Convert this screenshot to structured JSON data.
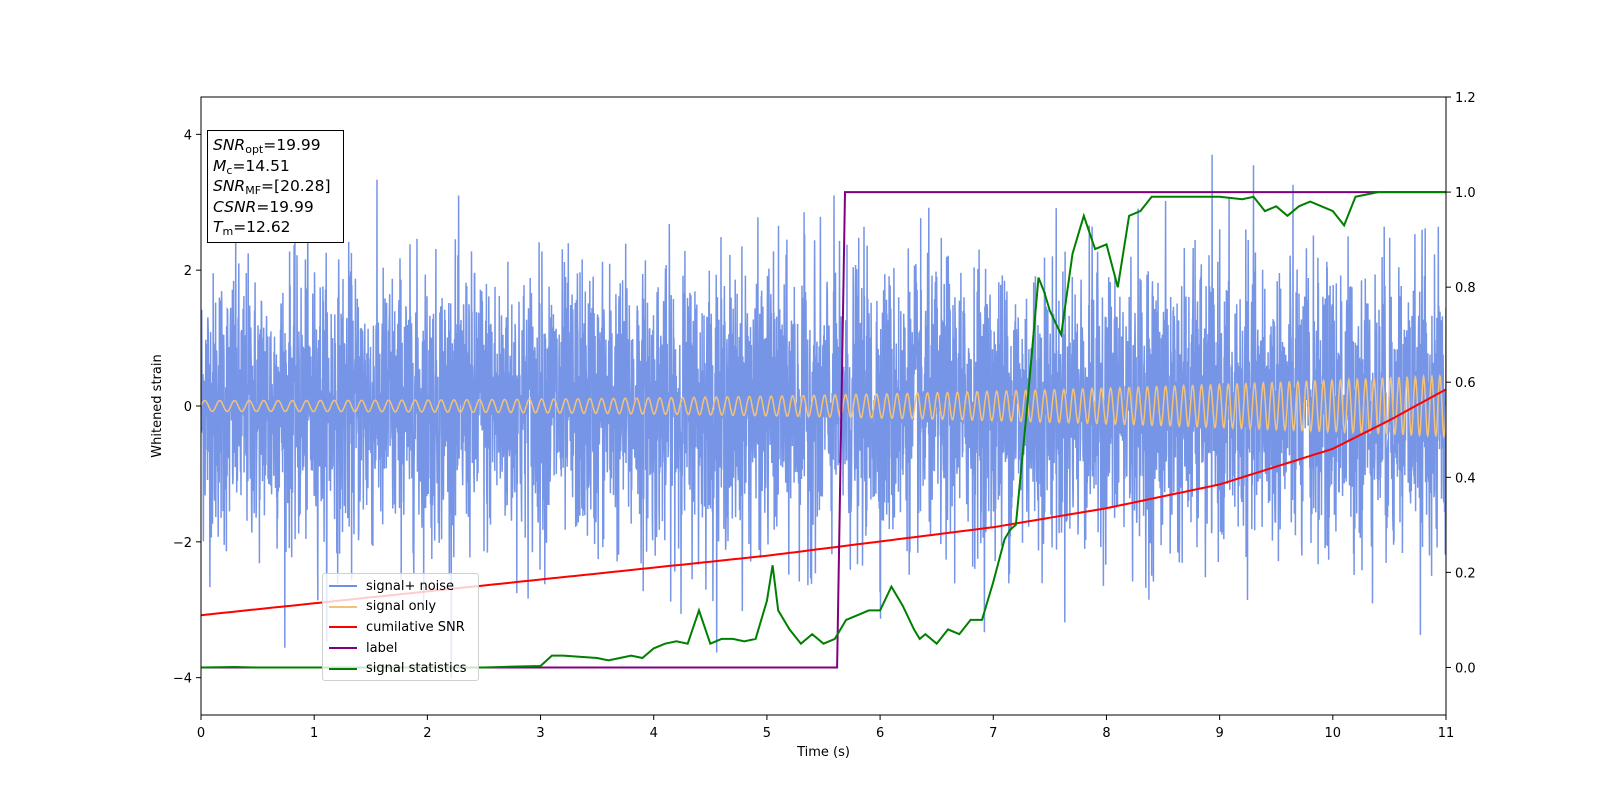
{
  "chart_data": {
    "type": "line",
    "xlabel": "Time (s)",
    "ylabel": "Whitened strain",
    "xlim": [
      0,
      11
    ],
    "ylim": [
      -4.55,
      4.55
    ],
    "y2lim": [
      -0.1,
      1.2
    ],
    "x_ticks": [
      "0",
      "1",
      "2",
      "3",
      "4",
      "5",
      "6",
      "7",
      "8",
      "9",
      "10",
      "11"
    ],
    "y_ticks": [
      "−4",
      "−2",
      "0",
      "2",
      "4"
    ],
    "y2_ticks": [
      "0.0",
      "0.2",
      "0.4",
      "0.6",
      "0.8",
      "1.0",
      "1.2"
    ],
    "grid": false,
    "legend_position": "lower-left",
    "annotation": {
      "lines": [
        {
          "sym": "SNR",
          "sub": "opt",
          "value": "=19.99"
        },
        {
          "sym": "M",
          "sub": "c",
          "value": "=14.51"
        },
        {
          "sym": "SNR",
          "sub": "MF",
          "value": "=[20.28]"
        },
        {
          "sym": "CSNR",
          "sub": "",
          "value": "=19.99"
        },
        {
          "sym": "T",
          "sub": "m",
          "value": "=12.62"
        }
      ]
    },
    "series": [
      {
        "name": "signal+ noise",
        "color": "#6f8fe6",
        "axis": "left",
        "description_values": {
          "amplitude_std": 1.0,
          "x_range": [
            0,
            11
          ]
        }
      },
      {
        "name": "signal only",
        "color": "#f2c27a",
        "axis": "left",
        "chirp": {
          "amplitude_start": 0.08,
          "amplitude_end": 0.45,
          "cycles": 118
        }
      },
      {
        "name": "cumilative SNR",
        "color": "#ff0000",
        "axis": "right",
        "x": [
          0,
          1,
          2,
          3,
          4,
          5,
          6,
          7,
          8,
          9,
          10,
          10.5,
          11
        ],
        "values": [
          0.11,
          0.135,
          0.16,
          0.185,
          0.21,
          0.235,
          0.265,
          0.295,
          0.335,
          0.385,
          0.46,
          0.52,
          0.585
        ]
      },
      {
        "name": "label",
        "color": "#800080",
        "axis": "right",
        "x": [
          0,
          5.62,
          5.69,
          11
        ],
        "values": [
          0.0,
          0.0,
          1.0,
          1.0
        ]
      },
      {
        "name": "signal statistics",
        "color": "#008000",
        "axis": "right",
        "x": [
          0,
          0.3,
          0.5,
          1,
          1.5,
          2,
          2.5,
          2.8,
          3.0,
          3.1,
          3.2,
          3.5,
          3.6,
          3.7,
          3.8,
          3.9,
          4.0,
          4.1,
          4.2,
          4.3,
          4.4,
          4.5,
          4.6,
          4.7,
          4.8,
          4.9,
          5.0,
          5.05,
          5.1,
          5.2,
          5.3,
          5.4,
          5.5,
          5.6,
          5.7,
          5.8,
          5.9,
          6.0,
          6.1,
          6.2,
          6.3,
          6.35,
          6.4,
          6.5,
          6.6,
          6.7,
          6.8,
          6.9,
          7.0,
          7.1,
          7.15,
          7.2,
          7.3,
          7.4,
          7.45,
          7.5,
          7.6,
          7.7,
          7.8,
          7.9,
          8.0,
          8.1,
          8.2,
          8.3,
          8.4,
          8.6,
          8.8,
          9.0,
          9.2,
          9.3,
          9.4,
          9.5,
          9.6,
          9.7,
          9.8,
          9.9,
          10.0,
          10.1,
          10.2,
          10.4,
          10.6,
          10.8,
          11.0
        ],
        "values": [
          0.0,
          0.001,
          0.0,
          0.0,
          0.0,
          0.0,
          0.0,
          0.002,
          0.003,
          0.025,
          0.025,
          0.02,
          0.015,
          0.02,
          0.025,
          0.02,
          0.04,
          0.05,
          0.055,
          0.05,
          0.12,
          0.05,
          0.06,
          0.06,
          0.055,
          0.06,
          0.14,
          0.215,
          0.12,
          0.08,
          0.05,
          0.07,
          0.05,
          0.06,
          0.1,
          0.11,
          0.12,
          0.12,
          0.17,
          0.13,
          0.08,
          0.06,
          0.07,
          0.05,
          0.08,
          0.07,
          0.1,
          0.1,
          0.18,
          0.27,
          0.29,
          0.3,
          0.55,
          0.82,
          0.79,
          0.75,
          0.7,
          0.87,
          0.95,
          0.88,
          0.89,
          0.8,
          0.95,
          0.96,
          0.99,
          0.99,
          0.99,
          0.99,
          0.985,
          0.99,
          0.96,
          0.97,
          0.95,
          0.97,
          0.98,
          0.97,
          0.96,
          0.93,
          0.99,
          1.0,
          1.0,
          1.0,
          1.0
        ]
      }
    ]
  },
  "colors": {
    "axes": "#000000",
    "background": "#ffffff"
  }
}
